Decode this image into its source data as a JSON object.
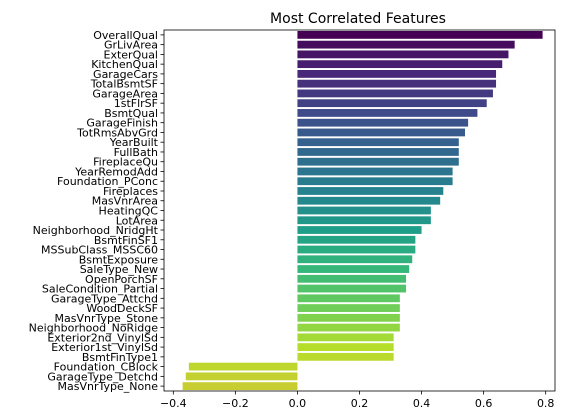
{
  "chart_data": {
    "type": "bar",
    "orientation": "horizontal",
    "title": "Most Correlated Features",
    "xlabel": "",
    "ylabel": "",
    "xlim": [
      -0.43,
      0.83
    ],
    "xticks": [
      -0.4,
      -0.2,
      0.0,
      0.2,
      0.4,
      0.6,
      0.8
    ],
    "xtick_labels": [
      "−0.4",
      "−0.2",
      "0.0",
      "0.2",
      "0.4",
      "0.6",
      "0.8"
    ],
    "grid": false,
    "categories": [
      "OverallQual",
      "GrLivArea",
      "ExterQual",
      "KitchenQual",
      "GarageCars",
      "TotalBsmtSF",
      "GarageArea",
      "1stFlrSF",
      "BsmtQual",
      "GarageFinish",
      "TotRmsAbvGrd",
      "YearBuilt",
      "FullBath",
      "FireplaceQu",
      "YearRemodAdd",
      "Foundation_PConc",
      "Fireplaces",
      "MasVnrArea",
      "HeatingQC",
      "LotArea",
      "Neighborhood_NridgHt",
      "BsmtFinSF1",
      "MSSubClass_MSSC60",
      "BsmtExposure",
      "SaleType_New",
      "OpenPorchSF",
      "SaleCondition_Partial",
      "GarageType_Attchd",
      "WoodDeckSF",
      "MasVnrType_Stone",
      "Neighborhood_NoRidge",
      "Exterior2nd_VinylSd",
      "Exterior1st_VinylSd",
      "BsmtFinType1",
      "Foundation_CBlock",
      "GarageType_Detchd",
      "MasVnrType_None"
    ],
    "values": [
      0.79,
      0.7,
      0.68,
      0.66,
      0.64,
      0.64,
      0.63,
      0.61,
      0.58,
      0.55,
      0.54,
      0.52,
      0.52,
      0.52,
      0.5,
      0.5,
      0.47,
      0.46,
      0.43,
      0.43,
      0.4,
      0.38,
      0.38,
      0.37,
      0.36,
      0.35,
      0.35,
      0.33,
      0.33,
      0.33,
      0.33,
      0.31,
      0.31,
      0.31,
      -0.35,
      -0.36,
      -0.37
    ],
    "colormap": "viridis"
  }
}
